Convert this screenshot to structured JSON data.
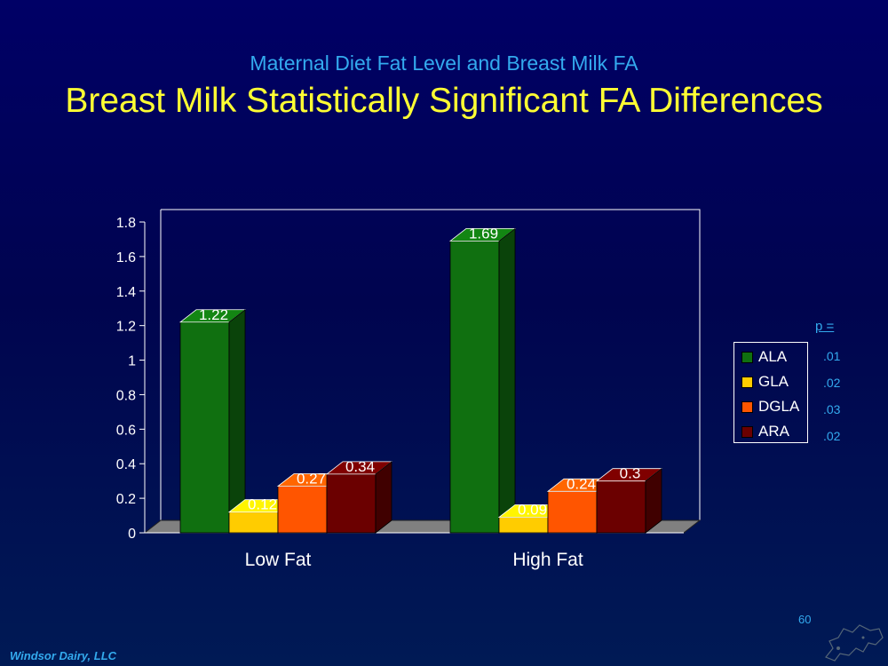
{
  "slide": {
    "subtitle": "Maternal Diet Fat Level and Breast Milk FA",
    "title": "Breast Milk Statistically Significant FA Differences",
    "slide_number": "60",
    "footer": "Windsor Dairy, LLC"
  },
  "p_values": {
    "label": "p =",
    "values": [
      ".01",
      ".02",
      ".03",
      ".02"
    ]
  },
  "chart_data": {
    "type": "bar",
    "categories": [
      "Low Fat",
      "High Fat"
    ],
    "series": [
      {
        "name": "ALA",
        "color": "#107010",
        "values": [
          1.22,
          1.69
        ]
      },
      {
        "name": "GLA",
        "color": "#ffcc00",
        "values": [
          0.12,
          0.09
        ]
      },
      {
        "name": "DGLA",
        "color": "#ff5500",
        "values": [
          0.27,
          0.24
        ]
      },
      {
        "name": "ARA",
        "color": "#6b0000",
        "values": [
          0.34,
          0.3
        ]
      }
    ],
    "y_ticks": [
      "0",
      "0.2",
      "0.4",
      "0.6",
      "0.8",
      "1",
      "1.2",
      "1.4",
      "1.6",
      "1.8"
    ],
    "ylim": [
      0,
      1.8
    ],
    "title": "",
    "xlabel": "",
    "ylabel": "",
    "legend": "right",
    "grid": false
  }
}
